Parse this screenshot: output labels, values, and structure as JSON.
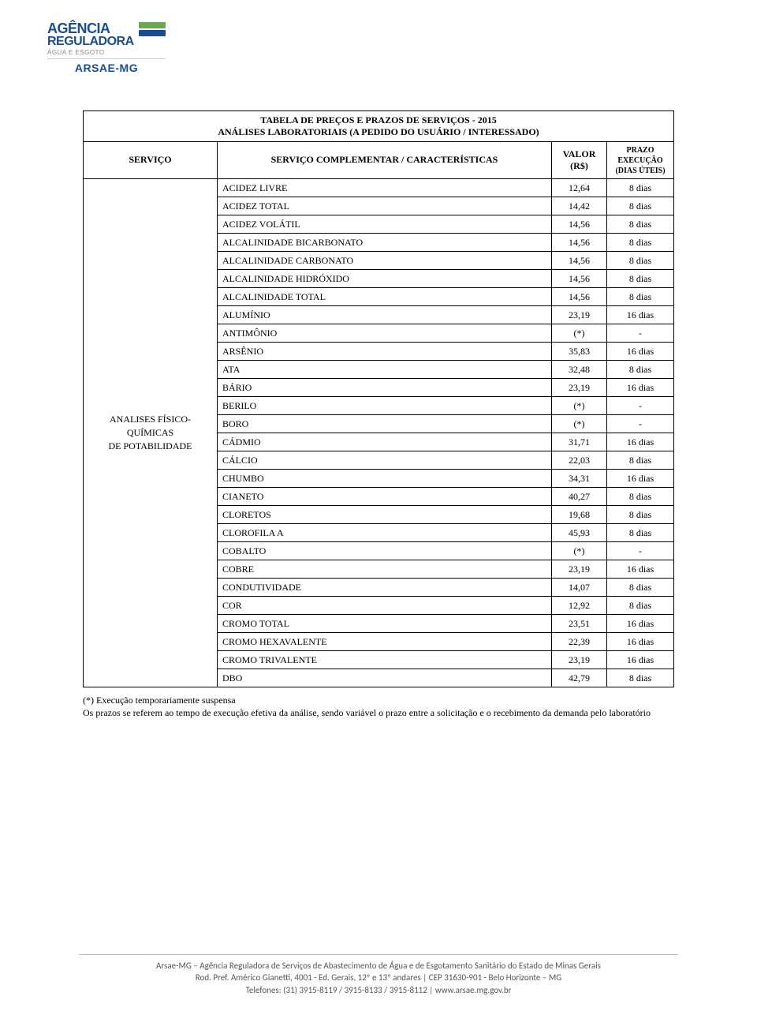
{
  "logo": {
    "line1": "AGÊNCIA",
    "line2": "REGULADORA",
    "sub": "ÁGUA E ESGOTO",
    "arsae": "ARSAE-MG"
  },
  "table": {
    "title_line1": "TABELA DE PREÇOS E PRAZOS DE SERVIÇOS - 2015",
    "title_line2": "ANÁLISES LABORATORIAIS (A PEDIDO DO USUÁRIO / INTERESSADO)",
    "headers": {
      "servico": "SERVIÇO",
      "complementar": "SERVIÇO COMPLEMENTAR / CARACTERÍSTICAS",
      "valor_l1": "VALOR",
      "valor_l2": "(R$)",
      "prazo_l1": "PRAZO",
      "prazo_l2": "EXECUÇÃO",
      "prazo_l3": "(DIAS ÚTEIS)"
    },
    "service_group": "ANALISES FÍSICO-QUÍMICAS DE POTABILIDADE",
    "rows": [
      {
        "c": "ACIDEZ LIVRE",
        "v": "12,64",
        "p": "8 dias"
      },
      {
        "c": "ACIDEZ TOTAL",
        "v": "14,42",
        "p": "8 dias"
      },
      {
        "c": "ACIDEZ VOLÁTIL",
        "v": "14,56",
        "p": "8 dias"
      },
      {
        "c": "ALCALINIDADE BICARBONATO",
        "v": "14,56",
        "p": "8 dias"
      },
      {
        "c": "ALCALINIDADE CARBONATO",
        "v": "14,56",
        "p": "8 dias"
      },
      {
        "c": "ALCALINIDADE HIDRÓXIDO",
        "v": "14,56",
        "p": "8 dias"
      },
      {
        "c": "ALCALINIDADE TOTAL",
        "v": "14,56",
        "p": "8 dias"
      },
      {
        "c": "ALUMÍNIO",
        "v": "23,19",
        "p": "16 dias"
      },
      {
        "c": "ANTIMÔNIO",
        "v": "(*)",
        "p": "-"
      },
      {
        "c": "ARSÊNIO",
        "v": "35,83",
        "p": "16 dias"
      },
      {
        "c": "ATA",
        "v": "32,48",
        "p": "8 dias"
      },
      {
        "c": "BÁRIO",
        "v": "23,19",
        "p": "16 dias"
      },
      {
        "c": "BERILO",
        "v": "(*)",
        "p": "-"
      },
      {
        "c": "BORO",
        "v": "(*)",
        "p": "-"
      },
      {
        "c": "CÁDMIO",
        "v": "31,71",
        "p": "16 dias"
      },
      {
        "c": "CÁLCIO",
        "v": "22,03",
        "p": "8 dias"
      },
      {
        "c": "CHUMBO",
        "v": "34,31",
        "p": "16 dias"
      },
      {
        "c": "CIANETO",
        "v": "40,27",
        "p": "8 dias"
      },
      {
        "c": "CLORETOS",
        "v": "19,68",
        "p": "8 dias"
      },
      {
        "c": "CLOROFILA A",
        "v": "45,93",
        "p": "8 dias"
      },
      {
        "c": "COBALTO",
        "v": "(*)",
        "p": "-"
      },
      {
        "c": "COBRE",
        "v": "23,19",
        "p": "16 dias"
      },
      {
        "c": "CONDUTIVIDADE",
        "v": "14,07",
        "p": "8 dias"
      },
      {
        "c": "COR",
        "v": "12,92",
        "p": "8 dias"
      },
      {
        "c": "CROMO TOTAL",
        "v": "23,51",
        "p": "16 dias"
      },
      {
        "c": "CROMO HEXAVALENTE",
        "v": "22,39",
        "p": "16 dias"
      },
      {
        "c": "CROMO TRIVALENTE",
        "v": "23,19",
        "p": "16 dias"
      },
      {
        "c": "DBO",
        "v": "42,79",
        "p": "8 dias"
      }
    ]
  },
  "footnote": {
    "l1": "(*) Execução temporariamente suspensa",
    "l2": "Os prazos se referem ao tempo de execução efetiva da análise, sendo variável o prazo entre a solicitação e o recebimento da demanda pelo laboratório"
  },
  "footer": {
    "l1": "Arsae-MG – Agência Reguladora de Serviços de Abastecimento de Água e de Esgotamento Sanitário do Estado de Minas Gerais",
    "l2": "Rod. Pref. Américo Gianetti, 4001 - Ed. Gerais, 12º e 13º andares   |   CEP 31630-901 - Belo Horizonte – MG",
    "l3": "Telefones: (31) 3915-8119 / 3915-8133 / 3915-8112  |  www.arsae.mg.gov.br"
  }
}
